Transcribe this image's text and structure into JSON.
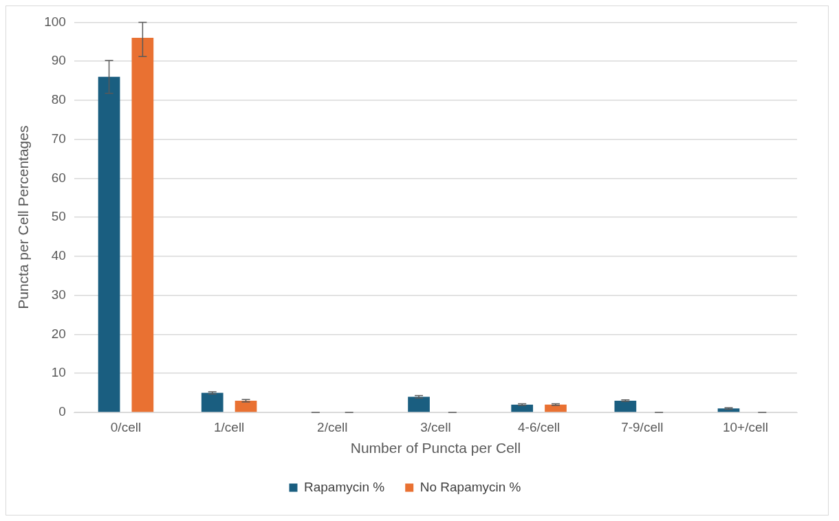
{
  "chart_data": {
    "type": "bar",
    "xlabel": "Number of Puncta per Cell",
    "ylabel": "Puncta per Cell Percentages",
    "categories": [
      "0/cell",
      "1/cell",
      "2/cell",
      "3/cell",
      "4-6/cell",
      "7-9/cell",
      "10+/cell"
    ],
    "series": [
      {
        "name": "Rapamycin %",
        "color": "#1a5e80",
        "values": [
          86,
          5,
          0,
          4,
          2,
          3,
          1
        ],
        "errors": [
          [
            81.8,
            90.2
          ],
          0.3,
          0,
          0.3,
          0.2,
          0.2,
          0.2
        ]
      },
      {
        "name": "No Rapamycin %",
        "color": "#e97132",
        "values": [
          96,
          3,
          0,
          0,
          2,
          0,
          0
        ],
        "errors": [
          [
            91.2,
            100
          ],
          0.3,
          0,
          0,
          0.2,
          0,
          0
        ]
      }
    ],
    "ylim": [
      0,
      100
    ],
    "yticks": [
      0,
      10,
      20,
      30,
      40,
      50,
      60,
      70,
      80,
      90,
      100
    ],
    "grid": "y",
    "legend": "bottom"
  }
}
